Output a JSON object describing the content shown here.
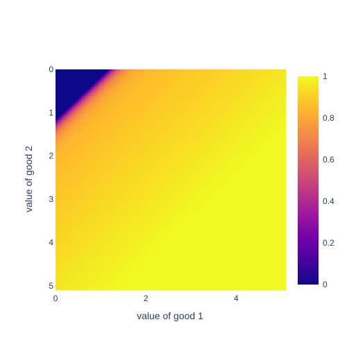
{
  "chart_data": {
    "type": "heatmap",
    "xlabel": "value of good 1",
    "ylabel": "value of good 2",
    "x_range": [
      0,
      5.1
    ],
    "y_range": [
      0,
      5.1
    ],
    "y_reversed": true,
    "x_ticks": [
      {
        "value": 0,
        "label": "0"
      },
      {
        "value": 2,
        "label": "2"
      },
      {
        "value": 4,
        "label": "4"
      }
    ],
    "y_ticks": [
      {
        "value": 0,
        "label": "0"
      },
      {
        "value": 1,
        "label": "1"
      },
      {
        "value": 2,
        "label": "2"
      },
      {
        "value": 3,
        "label": "3"
      },
      {
        "value": 4,
        "label": "4"
      },
      {
        "value": 5,
        "label": "5"
      }
    ],
    "colorbar": {
      "range": [
        0,
        1
      ],
      "ticks": [
        {
          "value": 0,
          "label": "0"
        },
        {
          "value": 0.2,
          "label": "0.2"
        },
        {
          "value": 0.4,
          "label": "0.4"
        },
        {
          "value": 0.6,
          "label": "0.6"
        },
        {
          "value": 0.8,
          "label": "0.8"
        },
        {
          "value": 1,
          "label": "1"
        }
      ]
    },
    "colorscale": [
      [
        0.0,
        "#0d0887"
      ],
      [
        0.111,
        "#46039f"
      ],
      [
        0.222,
        "#7201a8"
      ],
      [
        0.333,
        "#9c179e"
      ],
      [
        0.444,
        "#bd3786"
      ],
      [
        0.556,
        "#d8576b"
      ],
      [
        0.667,
        "#ed7953"
      ],
      [
        0.778,
        "#fb9f3a"
      ],
      [
        0.889,
        "#fdca26"
      ],
      [
        1.0,
        "#f0f921"
      ]
    ],
    "grid": {
      "x_start": 0,
      "y_start": 0,
      "step": 0.05,
      "n_x": 100,
      "n_y": 100
    },
    "surface": {
      "description": "value is 0 where good1 + good2 <= 1.15; rises steeply to about 0.8 just beyond that boundary, then slowly toward 1 at the top-right",
      "threshold_sum": 1.15,
      "transition_width": 0.55,
      "plateau_value": 0.82,
      "far_increase": 0.035
    },
    "grid_visible": false,
    "legend": "none"
  }
}
